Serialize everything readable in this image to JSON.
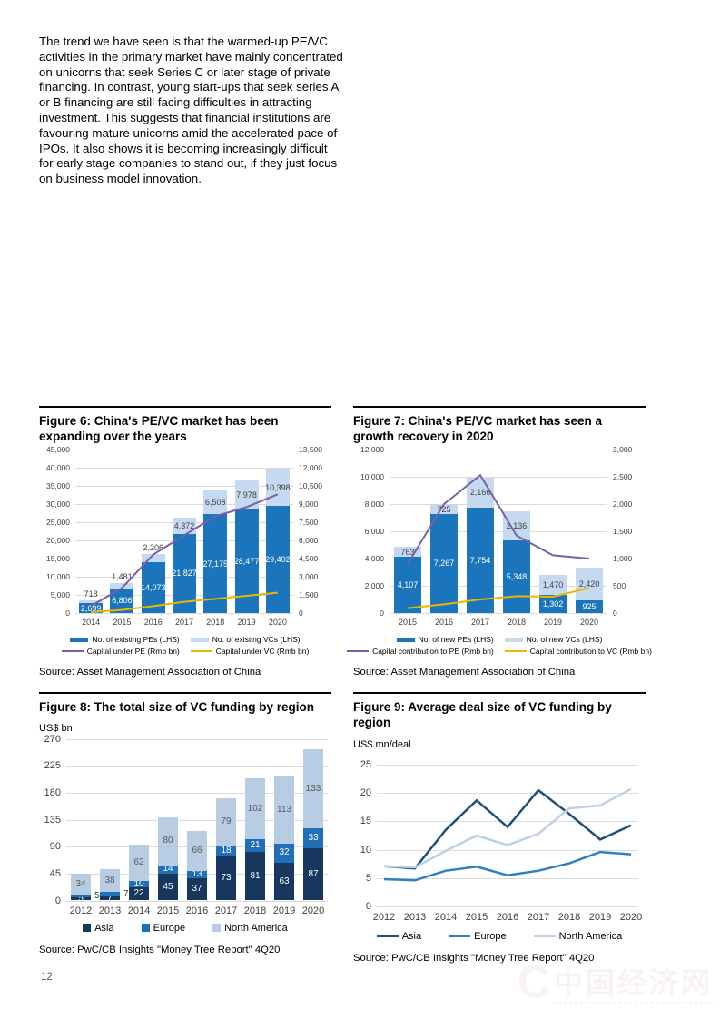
{
  "page": {
    "number": "12"
  },
  "intro_text": "The trend we have seen is that the warmed-up PE/VC activities in the primary market have mainly concentrated on unicorns that seek Series C or later stage of private financing. In contrast, young start-ups that seek series A or B financing are still facing difficulties in attracting investment. This suggests that financial institutions are favouring mature unicorns amid the accelerated pace of IPOs. It also shows it is becoming increasingly difficult for early stage companies to stand out, if they just focus on business model innovation.",
  "figures": [
    {
      "title": "Figure 6: China's PE/VC market has been expanding over the years",
      "source": "Source: Asset Management Association of China"
    },
    {
      "title": "Figure 7: China's PE/VC market has seen a growth recovery in 2020",
      "source": "Source: Asset Management Association of China"
    },
    {
      "title": "Figure 8: The total size of VC funding by region",
      "ylabel": "US$ bn",
      "source": "Source: PwC/CB Insights \"Money Tree Report\" 4Q20"
    },
    {
      "title": "Figure 9: Average deal size of VC funding by region",
      "ylabel": "US$ mn/deal",
      "source": "Source: PwC/CB Insights \"Money Tree Report\" 4Q20"
    }
  ],
  "watermark": {
    "text": "中国经济网",
    "prefix": "C"
  },
  "chart_data": [
    {
      "id": "fig6",
      "type": "bar",
      "subtype": "stacked-bars-plus-lines-dual-axis",
      "title": "Figure 6: China's PE/VC market has been expanding over the years",
      "categories": [
        "2014",
        "2015",
        "2016",
        "2017",
        "2018",
        "2019",
        "2020"
      ],
      "series": [
        {
          "name": "No. of existing PEs (LHS)",
          "render": "bar",
          "axis": "left",
          "color": "#1B75BC",
          "label_color": "#FFFFFF",
          "values": [
            2699,
            6806,
            14073,
            21827,
            27175,
            28477,
            29402
          ]
        },
        {
          "name": "No. of existing VCs (LHS)",
          "render": "bar",
          "axis": "left",
          "color": "#C5D9F1",
          "label_color": "#404040",
          "values": [
            718,
            1481,
            2206,
            4372,
            6508,
            7978,
            10398
          ]
        },
        {
          "name": "Capital under PE (Rmb bn)",
          "render": "line",
          "axis": "right",
          "color": "#7B5EA7",
          "values": [
            580,
            2075,
            4825,
            6425,
            8000,
            8750,
            9800
          ],
          "values_are_estimates": true
        },
        {
          "name": "Capital under VC (Rmb bn)",
          "render": "line",
          "axis": "right",
          "color": "#EDB500",
          "values": [
            75,
            250,
            575,
            925,
            1175,
            1425,
            1675
          ],
          "values_are_estimates": true
        }
      ],
      "ylim_left": [
        0,
        45000
      ],
      "ystep_left": 5000,
      "ylim_right": [
        0,
        13500
      ],
      "ystep_right": 1500,
      "grid": true,
      "legend_position": "bottom"
    },
    {
      "id": "fig7",
      "type": "bar",
      "subtype": "stacked-bars-plus-lines-dual-axis",
      "title": "Figure 7: China's PE/VC market has seen a growth recovery in 2020",
      "categories": [
        "2015",
        "2016",
        "2017",
        "2018",
        "2019",
        "2020"
      ],
      "series": [
        {
          "name": "No. of new PEs (LHS)",
          "render": "bar",
          "axis": "left",
          "color": "#1B75BC",
          "label_color": "#FFFFFF",
          "values": [
            4107,
            7267,
            7754,
            5348,
            1302,
            925
          ]
        },
        {
          "name": "No. of new VCs (LHS)",
          "render": "bar",
          "axis": "left",
          "color": "#C5D9F1",
          "label_color": "#404040",
          "values": [
            763,
            725,
            2166,
            2136,
            1470,
            2420
          ]
        },
        {
          "name": "Capital contribution to PE (Rmb bn)",
          "render": "line",
          "axis": "right",
          "color": "#7B5EA7",
          "values": [
            900,
            2000,
            2530,
            1420,
            1060,
            1000
          ],
          "values_are_estimates": true
        },
        {
          "name": "Capital contribution to VC (Rmb bn)",
          "render": "line",
          "axis": "right",
          "color": "#EDB500",
          "values": [
            90,
            160,
            250,
            310,
            300,
            460
          ],
          "values_are_estimates": true
        }
      ],
      "ylim_left": [
        0,
        12000
      ],
      "ystep_left": 2000,
      "ylim_right": [
        0,
        3000
      ],
      "ystep_right": 500,
      "grid": true,
      "legend_position": "bottom"
    },
    {
      "id": "fig8",
      "type": "bar",
      "subtype": "stacked",
      "title": "Figure 8: The total size of VC funding by region",
      "ylabel": "US$ bn",
      "categories": [
        "2012",
        "2013",
        "2014",
        "2015",
        "2016",
        "2017",
        "2018",
        "2019",
        "2020"
      ],
      "series": [
        {
          "name": "Asia",
          "color": "#17375E",
          "label_color": "#FFFFFF",
          "values": [
            5,
            7,
            22,
            45,
            37,
            73,
            81,
            63,
            87
          ]
        },
        {
          "name": "Europe",
          "color": "#1F70B8",
          "label_color": "#FFFFFF",
          "values": [
            5,
            7,
            10,
            14,
            13,
            18,
            21,
            32,
            33
          ]
        },
        {
          "name": "North America",
          "color": "#B8CCE4",
          "label_color": "#595959",
          "values": [
            34,
            38,
            62,
            80,
            66,
            79,
            102,
            113,
            133
          ]
        }
      ],
      "ylim": [
        0,
        270
      ],
      "ystep": 45,
      "grid": true,
      "legend_position": "bottom"
    },
    {
      "id": "fig9",
      "type": "line",
      "title": "Figure 9: Average deal size of VC funding by region",
      "ylabel": "US$ mn/deal",
      "x": [
        "2012",
        "2013",
        "2014",
        "2015",
        "2016",
        "2017",
        "2018",
        "2019",
        "2020"
      ],
      "series": [
        {
          "name": "Asia",
          "color": "#1F4E79",
          "values": [
            7.1,
            6.7,
            13.5,
            18.7,
            14.0,
            20.5,
            16.3,
            11.8,
            14.3
          ],
          "values_are_estimates": true
        },
        {
          "name": "Europe",
          "color": "#2E80C0",
          "values": [
            4.8,
            4.6,
            6.3,
            7.0,
            5.5,
            6.3,
            7.6,
            9.6,
            9.2
          ],
          "values_are_estimates": true
        },
        {
          "name": "North America",
          "color": "#BDD0E6",
          "values": [
            7.1,
            6.9,
            9.8,
            12.5,
            10.8,
            12.8,
            17.3,
            17.8,
            20.7
          ],
          "values_are_estimates": true
        }
      ],
      "ylim": [
        0,
        25
      ],
      "ystep": 5,
      "grid": true,
      "legend_position": "bottom"
    }
  ]
}
